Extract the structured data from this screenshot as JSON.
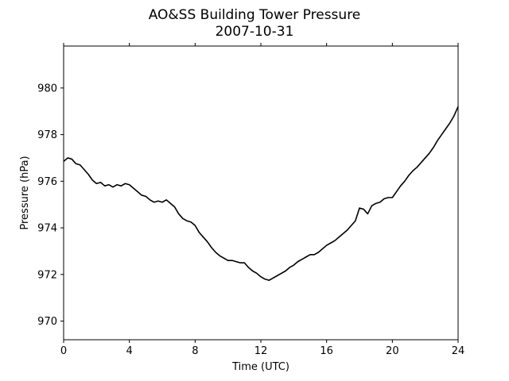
{
  "chart_data": {
    "type": "line",
    "title": "AO&SS Building Tower Pressure",
    "subtitle": "2007-10-31",
    "xlabel": "Time (UTC)",
    "ylabel": "Pressure (hPa)",
    "xlim": [
      0,
      24
    ],
    "ylim": [
      969.2,
      981.8
    ],
    "xticks": [
      0,
      4,
      8,
      12,
      16,
      20,
      24
    ],
    "yticks": [
      970,
      972,
      974,
      976,
      978,
      980
    ],
    "xtick_labels": [
      "0",
      "4",
      "8",
      "12",
      "16",
      "20",
      "24"
    ],
    "ytick_labels": [
      "970",
      "972",
      "974",
      "976",
      "978",
      "980"
    ],
    "grid": false,
    "line_color": "#000000",
    "series": [
      {
        "x": [
          0,
          0.25,
          0.5,
          0.75,
          1.0,
          1.25,
          1.5,
          1.75,
          2.0,
          2.25,
          2.5,
          2.75,
          3.0,
          3.25,
          3.5,
          3.75,
          4.0,
          4.25,
          4.5,
          4.75,
          5.0,
          5.25,
          5.5,
          5.75,
          6.0,
          6.25,
          6.5,
          6.75,
          7.0,
          7.25,
          7.5,
          7.75,
          8.0,
          8.25,
          8.5,
          8.75,
          9.0,
          9.25,
          9.5,
          9.75,
          10.0,
          10.25,
          10.5,
          10.75,
          11.0,
          11.25,
          11.5,
          11.75,
          12.0,
          12.25,
          12.5,
          12.75,
          13.0,
          13.25,
          13.5,
          13.75,
          14.0,
          14.25,
          14.5,
          14.75,
          15.0,
          15.25,
          15.5,
          15.75,
          16.0,
          16.25,
          16.5,
          16.75,
          17.0,
          17.25,
          17.5,
          17.75,
          18.0,
          18.25,
          18.5,
          18.75,
          19.0,
          19.25,
          19.5,
          19.75,
          20.0,
          20.25,
          20.5,
          20.75,
          21.0,
          21.25,
          21.5,
          21.75,
          22.0,
          22.25,
          22.5,
          22.75,
          23.0,
          23.25,
          23.5,
          23.75,
          24.0
        ],
        "y": [
          976.85,
          977.0,
          976.95,
          976.75,
          976.7,
          976.5,
          976.3,
          976.05,
          975.9,
          975.95,
          975.8,
          975.85,
          975.75,
          975.85,
          975.8,
          975.9,
          975.85,
          975.7,
          975.55,
          975.4,
          975.35,
          975.2,
          975.1,
          975.15,
          975.1,
          975.2,
          975.05,
          974.9,
          974.6,
          974.4,
          974.3,
          974.25,
          974.1,
          973.8,
          973.6,
          973.4,
          973.15,
          972.95,
          972.8,
          972.7,
          972.6,
          972.6,
          972.55,
          972.5,
          972.5,
          972.3,
          972.15,
          972.05,
          971.9,
          971.8,
          971.75,
          971.85,
          971.95,
          972.05,
          972.15,
          972.3,
          972.4,
          972.55,
          972.65,
          972.75,
          972.85,
          972.85,
          972.95,
          973.1,
          973.25,
          973.35,
          973.45,
          973.6,
          973.75,
          973.9,
          974.1,
          974.3,
          974.85,
          974.8,
          974.6,
          974.95,
          975.05,
          975.1,
          975.25,
          975.3,
          975.3,
          975.55,
          975.8,
          976.0,
          976.25,
          976.45,
          976.6,
          976.8,
          977.0,
          977.2,
          977.45,
          977.75,
          978.0,
          978.25,
          978.5,
          978.8,
          979.2
        ]
      }
    ]
  }
}
